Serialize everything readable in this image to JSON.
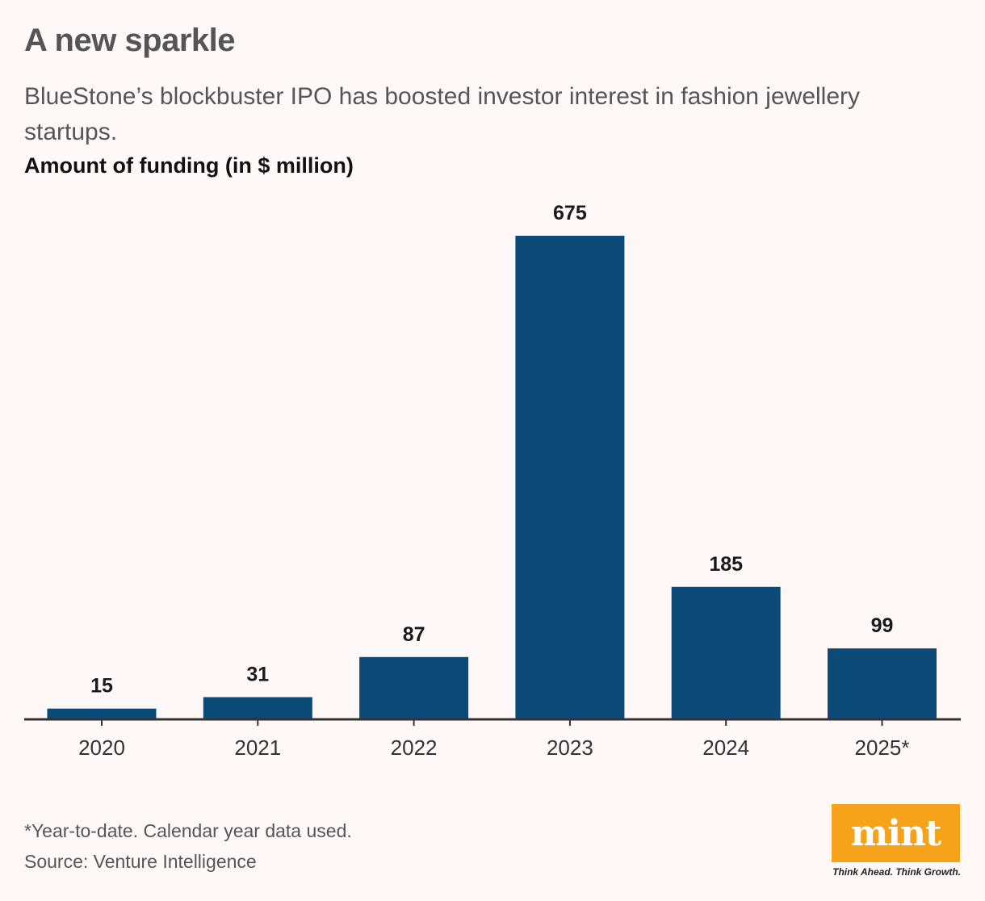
{
  "title": "A new sparkle",
  "subtitle": "BlueStone’s blockbuster IPO has boosted investor interest in fashion jewellery startups.",
  "footnote": "*Year-to-date. Calendar year data used.",
  "source": "Source: Venture Intelligence",
  "logo": {
    "text": "mint",
    "tagline": "Think Ahead. Think Growth.",
    "color": "#f7a21b"
  },
  "chart_data": {
    "type": "bar",
    "title": "A new sparkle",
    "ylabel": "Amount of funding (in $ million)",
    "xlabel": "",
    "categories": [
      "2020",
      "2021",
      "2022",
      "2023",
      "2024",
      "2025*"
    ],
    "values": [
      15,
      31,
      87,
      675,
      185,
      99
    ],
    "ylim": [
      0,
      675
    ],
    "grid": false,
    "legend": "none",
    "bar_color": "#0c4a7a"
  }
}
